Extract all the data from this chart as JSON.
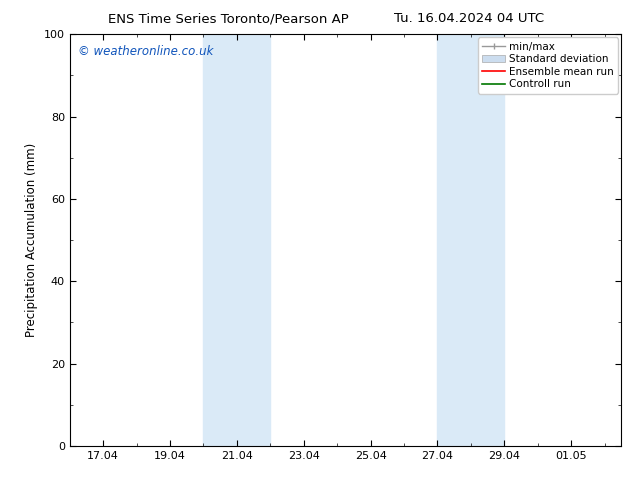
{
  "title_left": "ENS Time Series Toronto/Pearson AP",
  "title_right": "Tu. 16.04.2024 04 UTC",
  "ylabel": "Precipitation Accumulation (mm)",
  "ylim": [
    0,
    100
  ],
  "ytick_positions": [
    0,
    20,
    40,
    60,
    80,
    100
  ],
  "xtick_vals": [
    17,
    19,
    21,
    23,
    25,
    27,
    29,
    31
  ],
  "xtick_labels": [
    "17.04",
    "19.04",
    "21.04",
    "23.04",
    "25.04",
    "27.04",
    "29.04",
    "01.05"
  ],
  "xlim": [
    16.0,
    32.5
  ],
  "shaded_bands": [
    {
      "xmin": 20.0,
      "xmax": 22.0,
      "color": "#daeaf7"
    },
    {
      "xmin": 27.0,
      "xmax": 29.0,
      "color": "#daeaf7"
    }
  ],
  "watermark_text": "© weatheronline.co.uk",
  "watermark_color": "#1155bb",
  "legend_entries": [
    {
      "label": "min/max",
      "type": "line",
      "color": "#999999",
      "lw": 1.0
    },
    {
      "label": "Standard deviation",
      "type": "patch",
      "color": "#ccddef",
      "edgecolor": "#aaaaaa"
    },
    {
      "label": "Ensemble mean run",
      "type": "line",
      "color": "#ff0000",
      "lw": 1.2
    },
    {
      "label": "Controll run",
      "type": "line",
      "color": "#007700",
      "lw": 1.2
    }
  ],
  "bg_color": "#ffffff",
  "title_fontsize": 9.5,
  "axis_label_fontsize": 8.5,
  "tick_fontsize": 8,
  "legend_fontsize": 7.5,
  "watermark_fontsize": 8.5
}
